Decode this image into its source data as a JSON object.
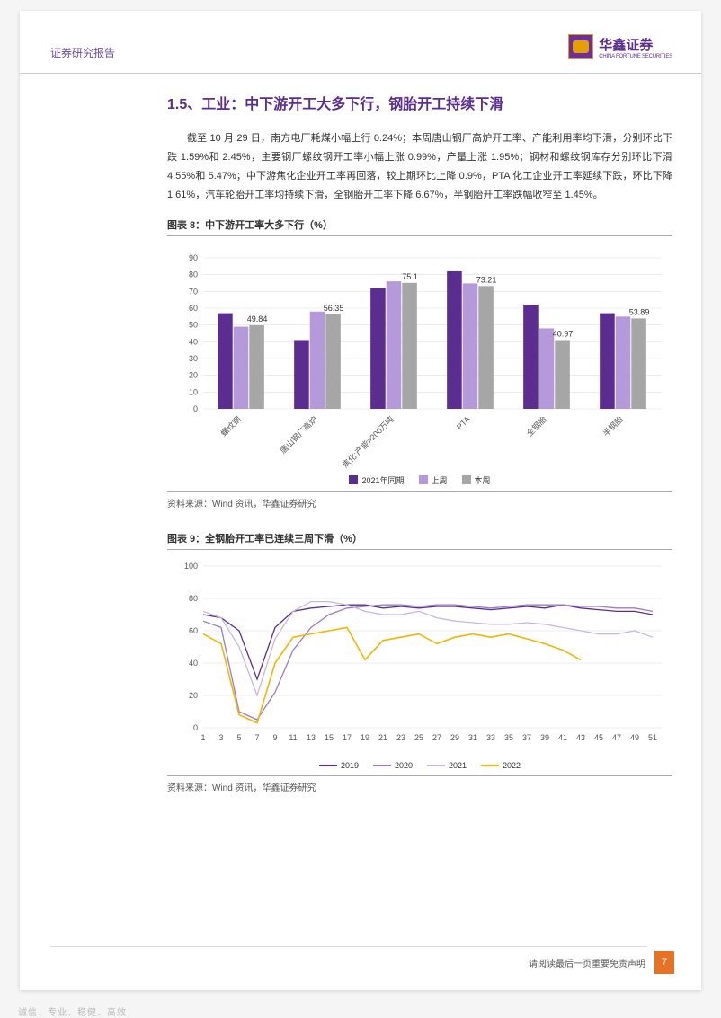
{
  "header": {
    "doc_type": "证券研究报告",
    "brand_cn": "华鑫证券",
    "brand_en": "CHINA FORTUNE SECURITIES"
  },
  "section": {
    "title": "1.5、工业：中下游开工大多下行，钢胎开工持续下滑",
    "body": "截至 10 月 29 日，南方电厂耗煤小幅上行 0.24%；本周唐山钢厂高炉开工率、产能利用率均下滑，分别环比下跌 1.59%和 2.45%，主要钢厂螺纹钢开工率小幅上涨 0.99%，产量上涨 1.95%；钢材和螺纹钢库存分别环比下滑 4.55%和 5.47%；中下游焦化企业开工率再回落，较上期环比上降 0.9%，PTA 化工企业开工率延续下跌，环比下降 1.61%，汽车轮胎开工率均持续下滑，全钢胎开工率下降 6.67%，半钢胎开工率跌幅收窄至 1.45%。"
  },
  "chart8": {
    "title": "图表 8：中下游开工率大多下行（%）",
    "type": "bar",
    "categories": [
      "螺纹钢",
      "唐山钢厂高炉",
      "焦化:产能>200万吨",
      "PTA",
      "全钢胎",
      "半钢胎"
    ],
    "series": [
      {
        "name": "2021年同期",
        "color": "#5b2d91",
        "values": [
          57,
          41,
          72,
          82,
          62,
          57
        ]
      },
      {
        "name": "上周",
        "color": "#b49adb",
        "values": [
          49,
          58,
          76,
          74.8,
          48,
          55
        ]
      },
      {
        "name": "本周",
        "color": "#a6a6a6",
        "values": [
          49.84,
          56.35,
          75.1,
          73.21,
          40.97,
          53.89
        ]
      }
    ],
    "data_labels": [
      {
        "group": 0,
        "series": 2,
        "text": "49.84"
      },
      {
        "group": 1,
        "series": 2,
        "text": "56.35"
      },
      {
        "group": 2,
        "series": 2,
        "text": "75.1"
      },
      {
        "group": 3,
        "series": 2,
        "text": "73.21"
      },
      {
        "group": 4,
        "series": 2,
        "text": "40.97"
      },
      {
        "group": 5,
        "series": 2,
        "text": "53.89"
      }
    ],
    "ylim": [
      0,
      90
    ],
    "ytick_step": 10,
    "yticks": [
      0,
      10,
      20,
      30,
      40,
      50,
      60,
      70,
      80,
      90
    ],
    "background_color": "#ffffff",
    "grid_color": "#e0e0e0",
    "bar_group_width": 0.62,
    "label_fontsize": 9,
    "tick_fontsize": 9,
    "x_label_rotation": -45,
    "source": "资料来源：Wind 资讯，华鑫证券研究"
  },
  "chart9": {
    "title": "图表 9：全钢胎开工率已连续三周下滑（%）",
    "type": "line",
    "xticks": [
      1,
      3,
      5,
      7,
      9,
      11,
      13,
      15,
      17,
      19,
      21,
      23,
      25,
      27,
      29,
      31,
      33,
      35,
      37,
      39,
      41,
      43,
      45,
      47,
      49,
      51
    ],
    "xlim": [
      1,
      52
    ],
    "ylim": [
      0,
      100
    ],
    "ytick_step": 20,
    "yticks": [
      0,
      20,
      40,
      60,
      80,
      100
    ],
    "series": [
      {
        "name": "2019",
        "color": "#5b2d91",
        "width": 1.3,
        "x": [
          1,
          3,
          5,
          7,
          9,
          11,
          13,
          15,
          17,
          19,
          21,
          23,
          25,
          27,
          29,
          31,
          33,
          35,
          37,
          39,
          41,
          43,
          45,
          47,
          49,
          51
        ],
        "y": [
          70,
          68,
          60,
          30,
          62,
          72,
          74,
          75,
          76,
          76,
          74,
          75,
          74,
          75,
          75,
          74,
          73,
          74,
          75,
          74,
          76,
          74,
          73,
          72,
          72,
          70
        ]
      },
      {
        "name": "2020",
        "color": "#9b7bc9",
        "width": 1.3,
        "x": [
          1,
          3,
          5,
          7,
          9,
          11,
          13,
          15,
          17,
          19,
          21,
          23,
          25,
          27,
          29,
          31,
          33,
          35,
          37,
          39,
          41,
          43,
          45,
          47,
          49,
          51
        ],
        "y": [
          66,
          62,
          10,
          5,
          22,
          48,
          62,
          70,
          74,
          75,
          76,
          76,
          75,
          76,
          76,
          75,
          74,
          75,
          76,
          76,
          76,
          75,
          75,
          74,
          74,
          72
        ]
      },
      {
        "name": "2021",
        "color": "#c7b5e3",
        "width": 1.3,
        "x": [
          1,
          3,
          5,
          7,
          9,
          11,
          13,
          15,
          17,
          19,
          21,
          23,
          25,
          27,
          29,
          31,
          33,
          35,
          37,
          39,
          41,
          43,
          45,
          47,
          49,
          51
        ],
        "y": [
          72,
          68,
          50,
          20,
          55,
          72,
          78,
          78,
          76,
          72,
          70,
          70,
          72,
          68,
          66,
          65,
          64,
          64,
          65,
          64,
          62,
          60,
          58,
          58,
          60,
          56
        ]
      },
      {
        "name": "2022",
        "color": "#f2b600",
        "width": 1.6,
        "x": [
          1,
          3,
          5,
          7,
          9,
          11,
          13,
          15,
          17,
          19,
          21,
          23,
          25,
          27,
          29,
          31,
          33,
          35,
          37,
          39,
          41,
          43
        ],
        "y": [
          58,
          52,
          8,
          3,
          40,
          56,
          58,
          60,
          62,
          42,
          54,
          56,
          58,
          52,
          56,
          58,
          56,
          58,
          55,
          52,
          48,
          42
        ]
      }
    ],
    "legend_colors": {
      "2019": "#5b2d91",
      "2020": "#9b7bc9",
      "2021": "#c7b5e3",
      "2022": "#f2b600"
    },
    "background_color": "#ffffff",
    "grid_color": "#dddddd",
    "tick_fontsize": 9,
    "source": "资料来源：Wind 资讯，华鑫证券研究"
  },
  "footer": {
    "disclaimer": "请阅读最后一页重要免责声明",
    "page_no": "7",
    "tagline": "诚信、专业、稳健、高效"
  }
}
